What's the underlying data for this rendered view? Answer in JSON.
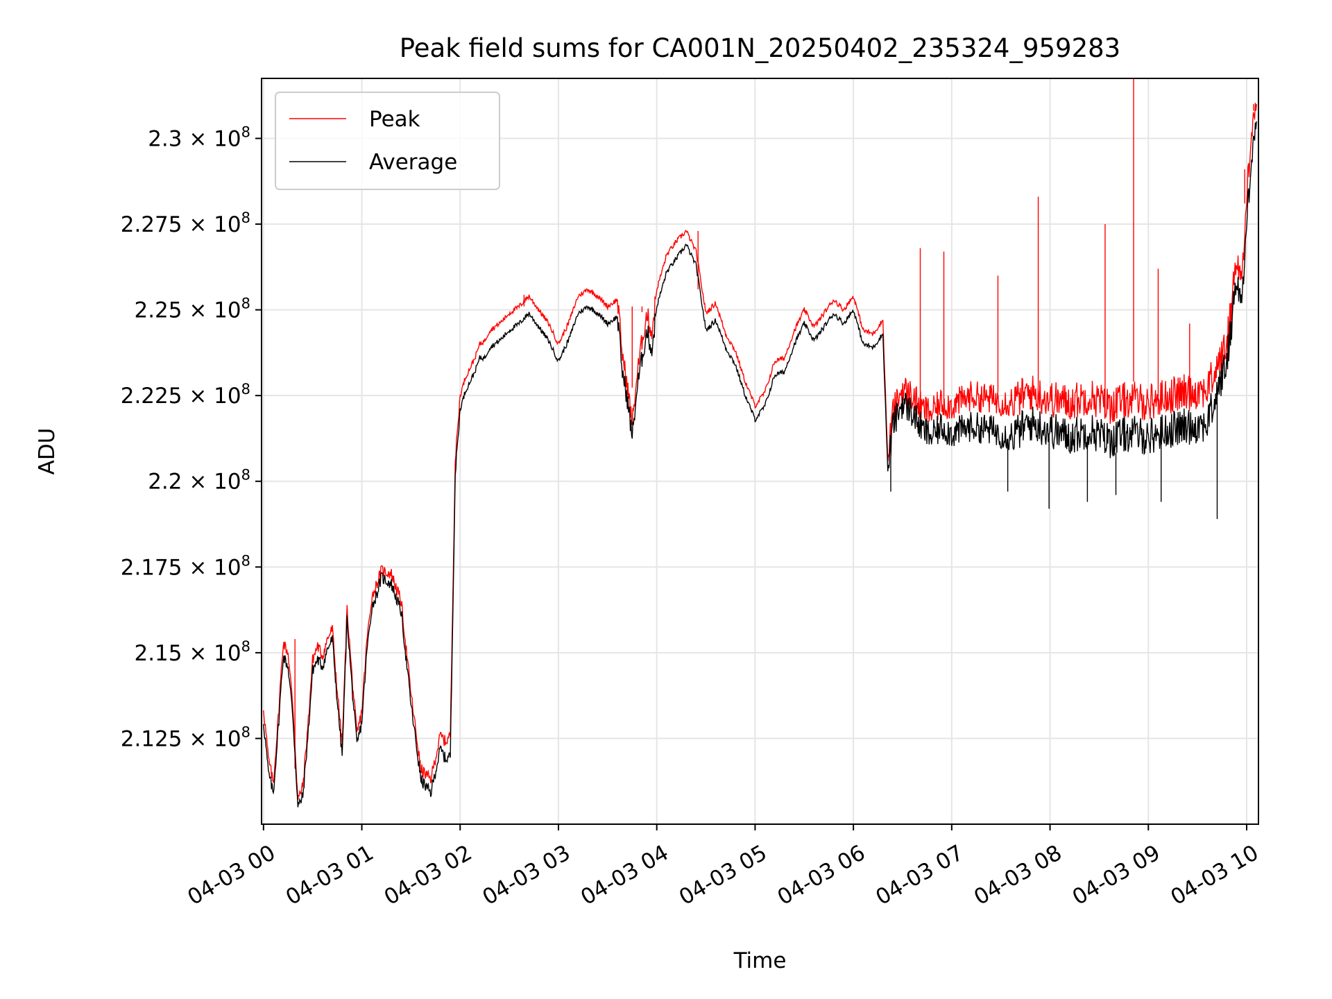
{
  "chart_data": {
    "type": "line",
    "title": "Peak field sums for CA001N_20250402_235324_959283",
    "xlabel": "Time",
    "ylabel": "ADU",
    "x_unit": "hours",
    "xlim": [
      -0.02,
      10.12
    ],
    "ylim": [
      210.0,
      231.75
    ],
    "y_multiplier": "× 10^8 (values in units of 10^6 ADU)",
    "x_ticks": [
      {
        "value": 0,
        "label": "04-03 00"
      },
      {
        "value": 1,
        "label": "04-03 01"
      },
      {
        "value": 2,
        "label": "04-03 02"
      },
      {
        "value": 3,
        "label": "04-03 03"
      },
      {
        "value": 4,
        "label": "04-03 04"
      },
      {
        "value": 5,
        "label": "04-03 05"
      },
      {
        "value": 6,
        "label": "04-03 06"
      },
      {
        "value": 7,
        "label": "04-03 07"
      },
      {
        "value": 8,
        "label": "04-03 08"
      },
      {
        "value": 9,
        "label": "04-03 09"
      },
      {
        "value": 10,
        "label": "04-03 10"
      }
    ],
    "y_ticks": [
      {
        "value": 212.5,
        "mantissa": "2.125",
        "exponent": "8"
      },
      {
        "value": 215.0,
        "mantissa": "2.15",
        "exponent": "8"
      },
      {
        "value": 217.5,
        "mantissa": "2.175",
        "exponent": "8"
      },
      {
        "value": 220.0,
        "mantissa": "2.2",
        "exponent": "8"
      },
      {
        "value": 222.5,
        "mantissa": "2.225",
        "exponent": "8"
      },
      {
        "value": 225.0,
        "mantissa": "2.25",
        "exponent": "8"
      },
      {
        "value": 227.5,
        "mantissa": "2.275",
        "exponent": "8"
      },
      {
        "value": 230.0,
        "mantissa": "2.3",
        "exponent": "8"
      }
    ],
    "times_label": "×",
    "grid": true,
    "legend_position": "top-left",
    "series": [
      {
        "name": "Peak",
        "color": "#ff0000"
      },
      {
        "name": "Average",
        "color": "#000000"
      }
    ],
    "average_series": {
      "x": [
        0.0,
        0.05,
        0.1,
        0.15,
        0.2,
        0.25,
        0.3,
        0.35,
        0.4,
        0.45,
        0.5,
        0.55,
        0.6,
        0.65,
        0.7,
        0.75,
        0.8,
        0.85,
        0.9,
        0.95,
        1.0,
        1.05,
        1.1,
        1.15,
        1.2,
        1.3,
        1.4,
        1.5,
        1.6,
        1.7,
        1.8,
        1.85,
        1.9,
        1.95,
        2.0,
        2.05,
        2.1,
        2.15,
        2.2,
        2.25,
        2.3,
        2.4,
        2.5,
        2.6,
        2.7,
        2.8,
        2.9,
        3.0,
        3.1,
        3.2,
        3.3,
        3.4,
        3.5,
        3.6,
        3.65,
        3.7,
        3.75,
        3.8,
        3.85,
        3.9,
        3.95,
        4.0,
        4.1,
        4.2,
        4.3,
        4.4,
        4.5,
        4.6,
        4.7,
        4.8,
        4.9,
        5.0,
        5.1,
        5.2,
        5.3,
        5.4,
        5.5,
        5.6,
        5.7,
        5.8,
        5.9,
        6.0,
        6.1,
        6.2,
        6.3,
        6.35,
        6.4,
        6.5,
        6.6,
        6.7,
        6.8,
        6.9,
        7.0,
        7.2,
        7.4,
        7.6,
        7.8,
        8.0,
        8.2,
        8.4,
        8.6,
        8.8,
        9.0,
        9.2,
        9.4,
        9.6,
        9.8,
        9.9,
        9.95,
        10.0,
        10.05,
        10.1
      ],
      "y": [
        213.0,
        211.5,
        210.9,
        212.8,
        214.9,
        214.6,
        213.1,
        210.5,
        210.8,
        212.5,
        214.5,
        214.8,
        214.6,
        215.1,
        215.4,
        213.6,
        212.0,
        216.0,
        214.0,
        212.3,
        213.0,
        215.0,
        216.3,
        216.7,
        217.2,
        217.0,
        216.2,
        213.5,
        211.3,
        210.9,
        212.2,
        211.9,
        212.0,
        220.2,
        222.1,
        222.6,
        222.9,
        223.2,
        223.6,
        223.6,
        223.9,
        224.1,
        224.4,
        224.6,
        224.9,
        224.5,
        224.1,
        223.5,
        224.1,
        224.9,
        225.1,
        224.9,
        224.6,
        224.8,
        223.2,
        222.4,
        221.3,
        222.7,
        223.6,
        224.4,
        223.8,
        225.1,
        226.1,
        226.5,
        226.9,
        226.3,
        224.4,
        224.7,
        223.9,
        223.4,
        222.5,
        221.8,
        222.2,
        223.1,
        223.2,
        224.0,
        224.6,
        224.1,
        224.5,
        224.9,
        224.6,
        225.0,
        224.0,
        223.9,
        224.3,
        220.3,
        221.6,
        222.3,
        222.0,
        221.5,
        221.3,
        221.6,
        221.4,
        221.6,
        221.5,
        221.3,
        221.7,
        221.5,
        221.3,
        221.5,
        221.2,
        221.4,
        221.3,
        221.5,
        221.6,
        221.7,
        223.5,
        226.0,
        225.1,
        227.5,
        229.6,
        230.5
      ]
    },
    "peak_series": {
      "x": [
        0.0,
        0.05,
        0.1,
        0.15,
        0.2,
        0.25,
        0.3,
        0.35,
        0.4,
        0.45,
        0.5,
        0.55,
        0.6,
        0.65,
        0.7,
        0.75,
        0.8,
        0.85,
        0.9,
        0.95,
        1.0,
        1.05,
        1.1,
        1.15,
        1.2,
        1.3,
        1.4,
        1.5,
        1.6,
        1.7,
        1.8,
        1.85,
        1.9,
        1.95,
        2.0,
        2.05,
        2.1,
        2.15,
        2.2,
        2.25,
        2.3,
        2.4,
        2.5,
        2.6,
        2.7,
        2.8,
        2.9,
        3.0,
        3.1,
        3.2,
        3.3,
        3.4,
        3.5,
        3.6,
        3.65,
        3.7,
        3.75,
        3.8,
        3.85,
        3.9,
        3.95,
        4.0,
        4.1,
        4.2,
        4.3,
        4.4,
        4.5,
        4.6,
        4.7,
        4.8,
        4.9,
        5.0,
        5.1,
        5.2,
        5.3,
        5.4,
        5.5,
        5.6,
        5.7,
        5.8,
        5.9,
        6.0,
        6.1,
        6.2,
        6.3,
        6.35,
        6.4,
        6.5,
        6.6,
        6.7,
        6.8,
        6.9,
        7.0,
        7.2,
        7.4,
        7.6,
        7.8,
        8.0,
        8.2,
        8.4,
        8.6,
        8.8,
        9.0,
        9.2,
        9.4,
        9.6,
        9.8,
        9.9,
        9.95,
        10.0,
        10.05,
        10.1
      ],
      "y": [
        213.4,
        211.9,
        211.2,
        213.1,
        215.3,
        215.0,
        213.4,
        210.7,
        211.1,
        212.8,
        214.8,
        215.2,
        214.9,
        215.4,
        215.7,
        213.9,
        212.3,
        216.3,
        214.3,
        212.6,
        213.3,
        215.3,
        216.6,
        217.0,
        217.4,
        217.3,
        216.5,
        213.8,
        211.6,
        211.3,
        212.6,
        212.4,
        212.6,
        220.6,
        222.5,
        223.0,
        223.3,
        223.6,
        224.0,
        224.1,
        224.4,
        224.6,
        224.9,
        225.1,
        225.4,
        225.0,
        224.6,
        224.0,
        224.6,
        225.4,
        225.6,
        225.4,
        225.1,
        225.3,
        223.7,
        222.8,
        221.7,
        223.1,
        224.1,
        224.9,
        224.3,
        225.6,
        226.6,
        227.0,
        227.3,
        226.7,
        224.9,
        225.2,
        224.3,
        223.8,
        222.9,
        222.2,
        222.6,
        223.5,
        223.6,
        224.4,
        225.0,
        224.5,
        224.9,
        225.3,
        225.0,
        225.4,
        224.4,
        224.3,
        224.7,
        220.6,
        222.0,
        222.7,
        222.5,
        222.1,
        222.0,
        222.3,
        222.2,
        222.5,
        222.4,
        222.3,
        222.6,
        222.4,
        222.3,
        222.5,
        222.2,
        222.4,
        222.3,
        222.5,
        222.6,
        222.7,
        224.0,
        226.6,
        225.8,
        228.2,
        230.4,
        231.0
      ]
    },
    "peak_spikes": [
      {
        "x": 0.32,
        "y": 215.4
      },
      {
        "x": 2.65,
        "y": 225.1
      },
      {
        "x": 3.75,
        "y": 225.1
      },
      {
        "x": 3.85,
        "y": 225.1
      },
      {
        "x": 4.42,
        "y": 227.3
      },
      {
        "x": 6.68,
        "y": 226.8
      },
      {
        "x": 6.92,
        "y": 226.7
      },
      {
        "x": 7.47,
        "y": 226.0
      },
      {
        "x": 7.88,
        "y": 228.3
      },
      {
        "x": 8.56,
        "y": 227.5
      },
      {
        "x": 8.85,
        "y": 231.75
      },
      {
        "x": 9.1,
        "y": 226.2
      },
      {
        "x": 9.42,
        "y": 224.6
      },
      {
        "x": 9.98,
        "y": 229.1
      },
      {
        "x": 10.07,
        "y": 231.0
      }
    ],
    "average_dips": [
      {
        "x": 6.38,
        "y": 219.7
      },
      {
        "x": 7.57,
        "y": 219.7
      },
      {
        "x": 7.99,
        "y": 219.2
      },
      {
        "x": 8.38,
        "y": 219.4
      },
      {
        "x": 8.67,
        "y": 219.6
      },
      {
        "x": 9.13,
        "y": 219.4
      },
      {
        "x": 9.7,
        "y": 218.9
      }
    ]
  }
}
